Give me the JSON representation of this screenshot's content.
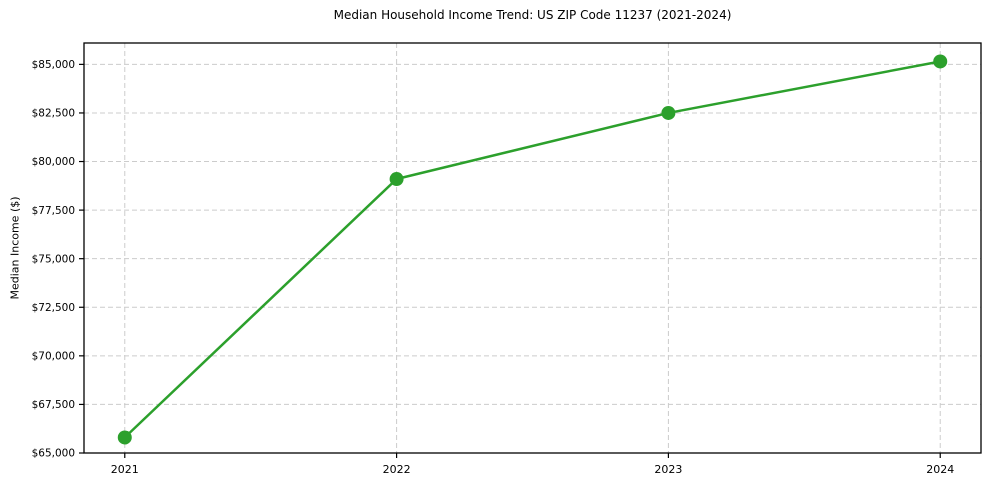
{
  "chart_data": {
    "type": "line",
    "title": "Median Household Income Trend: US ZIP Code 11237 (2021-2024)",
    "xlabel": "",
    "ylabel": "Median Income ($)",
    "categories": [
      "2021",
      "2022",
      "2023",
      "2024"
    ],
    "x": [
      2021,
      2022,
      2023,
      2024
    ],
    "values": [
      65800,
      79100,
      82500,
      85150
    ],
    "xlim": [
      2020.85,
      2024.15
    ],
    "ylim": [
      65000,
      86100
    ],
    "yticks": [
      65000,
      67500,
      70000,
      72500,
      75000,
      77500,
      80000,
      82500,
      85000
    ],
    "ytick_labels": [
      "$65,000",
      "$67,500",
      "$70,000",
      "$72,500",
      "$75,000",
      "$77,500",
      "$80,000",
      "$82,500",
      "$85,000"
    ],
    "grid": true,
    "grid_color": "#cccccc",
    "grid_style": "dashed",
    "legend_position": "none",
    "line_color": "#2ca02c",
    "marker": "circle",
    "background_color": "#ffffff",
    "border_color": "#000000"
  }
}
